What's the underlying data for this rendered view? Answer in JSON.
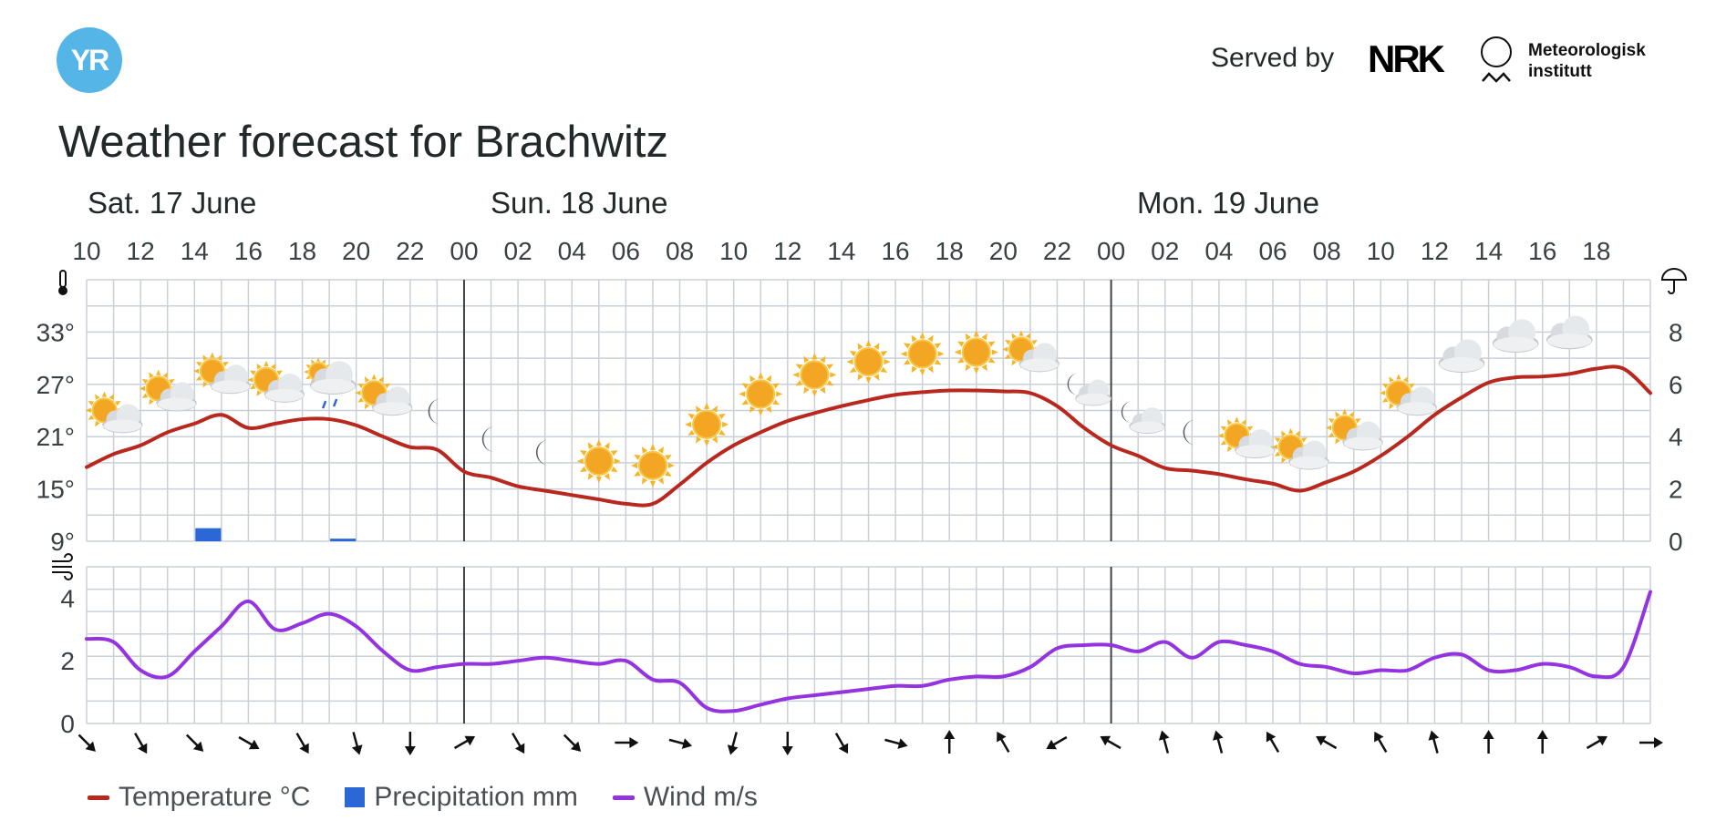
{
  "header": {
    "logo_text": "YR",
    "served_by": "Served by",
    "nrk_logo_text": "NRK",
    "met_logo_text": "Meteorologisk\ninstitutt",
    "title": "Weather forecast for Brachwitz"
  },
  "colors": {
    "temperature": "#b8281f",
    "precipitation": "#2b68d6",
    "wind": "#9433e0",
    "grid": "#c9d0d8",
    "day_divider": "#3e4347"
  },
  "days": [
    "Sat. 17 June",
    "Sun. 18 June",
    "Mon. 19 June"
  ],
  "legend": {
    "temperature": "Temperature °C",
    "precipitation": "Precipitation mm",
    "wind": "Wind m/s"
  },
  "chart_data": [
    {
      "type": "line",
      "y_axis_left": {
        "unit": "°",
        "ticks": [
          "33°",
          "27°",
          "21°",
          "15°",
          "9°"
        ],
        "range": [
          9,
          39
        ]
      },
      "y_axis_right": {
        "ticks": [
          "8",
          "6",
          "4",
          "2",
          "0"
        ],
        "range": [
          0,
          10
        ]
      },
      "x_tick_labels": [
        "10",
        "12",
        "14",
        "16",
        "18",
        "20",
        "22",
        "00",
        "02",
        "04",
        "06",
        "08",
        "10",
        "12",
        "14",
        "16",
        "18",
        "20",
        "22",
        "00",
        "02",
        "04",
        "06",
        "08",
        "10",
        "12",
        "14",
        "16",
        "18"
      ],
      "x_hours_from_sat_10": [
        0,
        1,
        2,
        3,
        4,
        5,
        6,
        7,
        8,
        9,
        10,
        11,
        12,
        13,
        14,
        15,
        16,
        17,
        18,
        19,
        20,
        21,
        22,
        23,
        24,
        25,
        26,
        27,
        28,
        29,
        30,
        31,
        32,
        33,
        34,
        35,
        36,
        37,
        38,
        39,
        40,
        41,
        42,
        43,
        44,
        45,
        46,
        47,
        48,
        49,
        50,
        51,
        52,
        53,
        54,
        55,
        56,
        57,
        58
      ],
      "series": [
        {
          "name": "Temperature °C",
          "values": [
            17.5,
            19,
            20,
            21.5,
            22.5,
            23.5,
            22,
            22.5,
            23,
            23,
            22.3,
            21,
            19.8,
            19.5,
            17,
            16.3,
            15.3,
            14.8,
            14.3,
            13.8,
            13.3,
            13.3,
            15.5,
            18,
            20,
            21.5,
            22.8,
            23.7,
            24.5,
            25.2,
            25.8,
            26.1,
            26.3,
            26.3,
            26.2,
            26,
            24.5,
            22,
            20,
            18.8,
            17.4,
            17.1,
            16.7,
            16.1,
            15.6,
            14.8,
            15.8,
            17,
            18.8,
            21,
            23.5,
            25.5,
            27.2,
            27.8,
            27.9,
            28.2,
            28.8,
            28.8,
            26
          ]
        },
        {
          "name": "Precipitation mm",
          "type": "bar",
          "bars": [
            {
              "hour": 4,
              "value": 0.5
            },
            {
              "hour": 9,
              "value": 0.1
            }
          ]
        }
      ],
      "weather_icons": [
        {
          "hour": 1,
          "icon": "partly-cloudy-day"
        },
        {
          "hour": 3,
          "icon": "partly-cloudy-day"
        },
        {
          "hour": 5,
          "icon": "partly-cloudy-day"
        },
        {
          "hour": 7,
          "icon": "partly-cloudy-day"
        },
        {
          "hour": 9,
          "icon": "light-rain-showers"
        },
        {
          "hour": 11,
          "icon": "partly-cloudy-day"
        },
        {
          "hour": 13,
          "icon": "clear-night"
        },
        {
          "hour": 15,
          "icon": "clear-night"
        },
        {
          "hour": 17,
          "icon": "clear-night"
        },
        {
          "hour": 19,
          "icon": "clear-day"
        },
        {
          "hour": 21,
          "icon": "clear-day"
        },
        {
          "hour": 23,
          "icon": "clear-day"
        },
        {
          "hour": 25,
          "icon": "clear-day"
        },
        {
          "hour": 27,
          "icon": "clear-day"
        },
        {
          "hour": 29,
          "icon": "clear-day"
        },
        {
          "hour": 31,
          "icon": "clear-day"
        },
        {
          "hour": 33,
          "icon": "clear-day"
        },
        {
          "hour": 35,
          "icon": "partly-cloudy-day"
        },
        {
          "hour": 37,
          "icon": "partly-cloudy-night"
        },
        {
          "hour": 39,
          "icon": "partly-cloudy-night"
        },
        {
          "hour": 41,
          "icon": "clear-night"
        },
        {
          "hour": 43,
          "icon": "partly-cloudy-day"
        },
        {
          "hour": 45,
          "icon": "partly-cloudy-day"
        },
        {
          "hour": 47,
          "icon": "partly-cloudy-day"
        },
        {
          "hour": 49,
          "icon": "partly-cloudy-day"
        },
        {
          "hour": 51,
          "icon": "cloudy"
        },
        {
          "hour": 53,
          "icon": "cloudy"
        },
        {
          "hour": 55,
          "icon": "cloudy"
        }
      ]
    },
    {
      "type": "line",
      "y_axis": {
        "ticks": [
          "4",
          "2",
          "0"
        ],
        "range": [
          0,
          5
        ]
      },
      "series": [
        {
          "name": "Wind m/s",
          "values": [
            2.7,
            2.6,
            1.7,
            1.5,
            2.3,
            3.1,
            3.9,
            3.0,
            3.2,
            3.5,
            3.1,
            2.3,
            1.7,
            1.8,
            1.9,
            1.9,
            2.0,
            2.1,
            2.0,
            1.9,
            2.0,
            1.4,
            1.3,
            0.5,
            0.4,
            0.6,
            0.8,
            0.9,
            1.0,
            1.1,
            1.2,
            1.2,
            1.4,
            1.5,
            1.5,
            1.8,
            2.4,
            2.5,
            2.5,
            2.3,
            2.6,
            2.1,
            2.6,
            2.5,
            2.3,
            1.9,
            1.8,
            1.6,
            1.7,
            1.7,
            2.1,
            2.2,
            1.7,
            1.7,
            1.9,
            1.8,
            1.5,
            1.8,
            4.2
          ]
        }
      ],
      "wind_direction_arrows_deg": [
        135,
        150,
        135,
        120,
        150,
        165,
        180,
        60,
        150,
        135,
        90,
        105,
        195,
        180,
        150,
        105,
        0,
        330,
        240,
        300,
        345,
        345,
        330,
        300,
        330,
        345,
        0,
        0,
        60,
        90
      ]
    }
  ]
}
